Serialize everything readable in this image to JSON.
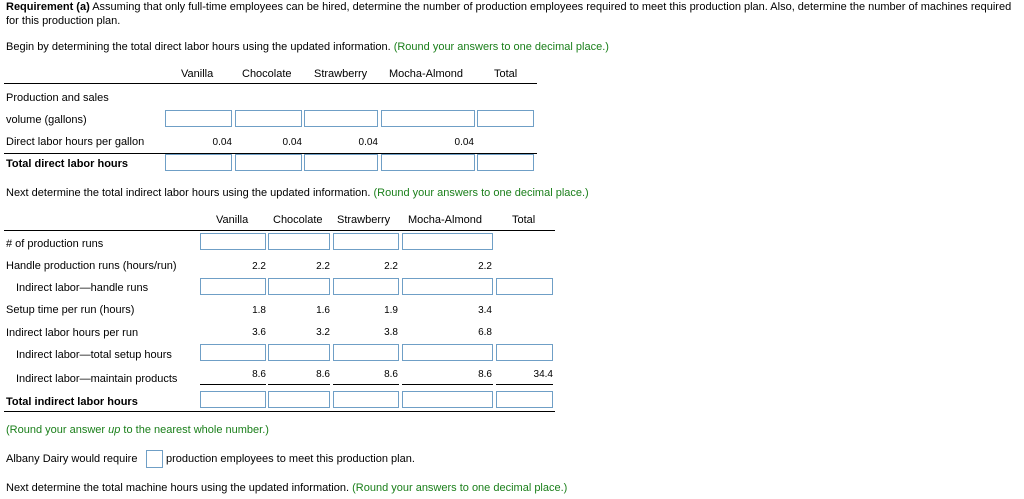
{
  "intro": {
    "req_label": "Requirement (a)",
    "req_text": " Assuming that only full-time employees can be hired, determine the number of production employees required to meet this production plan. Also, determine the number of machines required for this production plan."
  },
  "section1": {
    "instruction": "Begin by determining the total direct labor hours using the updated information.",
    "note": "(Round your answers to one decimal place.)",
    "columns": [
      "Vanilla",
      "Chocolate",
      "Strawberry",
      "Mocha-Almond",
      "Total"
    ],
    "row_prod_line1": "Production and sales",
    "row_prod_line2": "volume (gallons)",
    "row_dlh_label": "Direct labor hours per gallon",
    "row_dlh_values": [
      "0.04",
      "0.04",
      "0.04",
      "0.04"
    ],
    "row_total_label": "Total direct labor hours"
  },
  "section2": {
    "instruction": "Next determine the total indirect labor hours using the updated information.",
    "note": "(Round your answers to one decimal place.)",
    "columns": [
      "Vanilla",
      "Chocolate",
      "Strawberry",
      "Mocha-Almond",
      "Total"
    ],
    "rows": {
      "runs_label": "# of production runs",
      "handle_label": "Handle production runs (hours/run)",
      "handle_values": [
        "2.2",
        "2.2",
        "2.2",
        "2.2"
      ],
      "il_handle_label": "Indirect labor—handle runs",
      "setup_label": "Setup time per run (hours)",
      "setup_values": [
        "1.8",
        "1.6",
        "1.9",
        "3.4"
      ],
      "ilh_per_run_label": "Indirect labor hours per run",
      "ilh_per_run_values": [
        "3.6",
        "3.2",
        "3.8",
        "6.8"
      ],
      "il_setup_label": "Indirect labor—total setup hours",
      "il_maintain_label": "Indirect labor—maintain products",
      "il_maintain_values": [
        "8.6",
        "8.6",
        "8.6",
        "8.6",
        "34.4"
      ],
      "total_label": "Total indirect labor hours"
    }
  },
  "section3": {
    "note_prefix": "(Round your answer ",
    "note_italic": "up",
    "note_suffix": " to the nearest whole number.)",
    "sentence_before": "Albany Dairy would require",
    "sentence_after": "production employees to meet this production plan."
  },
  "section4": {
    "instruction": "Next determine the total machine hours using the updated information.",
    "note": "(Round your answers to one decimal place.)"
  }
}
